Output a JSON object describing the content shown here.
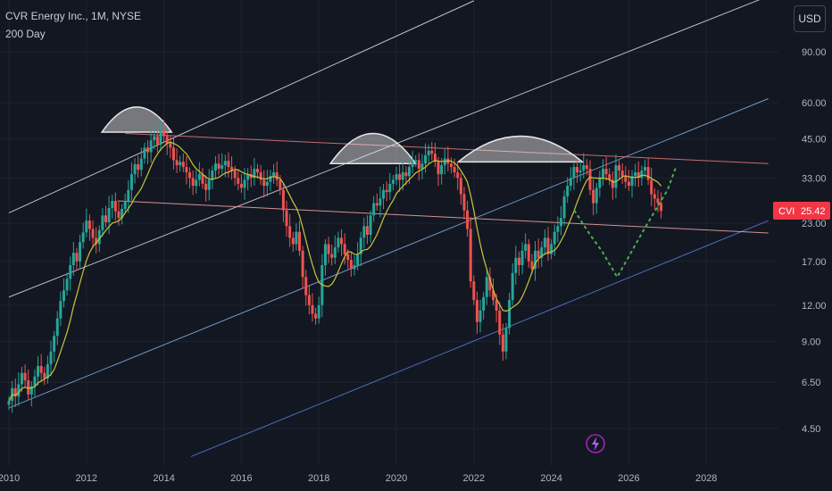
{
  "legend": {
    "symbol_line": "CVR Energy Inc., 1M, NYSE",
    "indicator": "200 Day"
  },
  "currency_button": "USD",
  "price_badge": {
    "ticker": "CVI",
    "price": "25.42"
  },
  "chart_data": {
    "type": "candlestick",
    "y_scale": "log",
    "y_ticks": [
      "90.00",
      "60.00",
      "45.00",
      "33.00",
      "23.00",
      "17.00",
      "12.00",
      "9.00",
      "6.50",
      "4.50"
    ],
    "y_tick_values": [
      90,
      60,
      45,
      33,
      23,
      17,
      12,
      9,
      6.5,
      4.5
    ],
    "x_ticks": [
      "2010",
      "2012",
      "2014",
      "2016",
      "2018",
      "2020",
      "2022",
      "2024",
      "2026",
      "2028"
    ],
    "x_tick_values": [
      2010,
      2012,
      2014,
      2016,
      2018,
      2020,
      2022,
      2024,
      2026,
      2028
    ],
    "ylim": [
      3.6,
      130
    ],
    "xlim": [
      2010,
      2029.6
    ],
    "colors": {
      "up": "#26a69a",
      "down": "#ef5350",
      "ma": "#c8c63b",
      "background": "#131722"
    },
    "monthly_closes": [
      {
        "start": 2010.0,
        "values": [
          5.6,
          6.2,
          5.8,
          6.4,
          7.0,
          6.6,
          5.9,
          6.3,
          6.8,
          7.4,
          7.0,
          6.7,
          7.5,
          8.3,
          9.4,
          10.8,
          12.4,
          13.5,
          14.8,
          16.5,
          18.2,
          17.0,
          19.8,
          21.4,
          23.5,
          22.0,
          20.5,
          19.5,
          21.8,
          24.5,
          23.2,
          26.0,
          27.5,
          25.3,
          24.0,
          25.8,
          27.5,
          30.0,
          34.0,
          36.8,
          35.2,
          38.5,
          42.0,
          40.5,
          44.5,
          46.0,
          43.0,
          48.0,
          46.0,
          43.5,
          42.0,
          38.0,
          36.5,
          37.5,
          36.0,
          34.5,
          33.0,
          31.0,
          32.5,
          34.0,
          31.5,
          30.0,
          32.5,
          35.0,
          37.0,
          35.5,
          36.5,
          37.8,
          36.0,
          35.0,
          33.0,
          31.5,
          30.5,
          32.5,
          34.0,
          33.0,
          35.5,
          34.5,
          32.5,
          31.0,
          32.0,
          33.5,
          34.5,
          32.5,
          30.0,
          25.5,
          22.5,
          20.5,
          19.5,
          21.5,
          18.5,
          15.0,
          13.0,
          12.0,
          11.2,
          10.8,
          12.0,
          16.5,
          19.5,
          18.0,
          17.5,
          19.0,
          20.5,
          19.5,
          18.0,
          17.2,
          16.0,
          16.5,
          18.0,
          20.5,
          22.5,
          21.0,
          24.5,
          27.0,
          26.5,
          28.0,
          30.0,
          29.5,
          31.5,
          32.5,
          34.0,
          32.5,
          34.5,
          33.5,
          36.0,
          37.5,
          38.0,
          35.5,
          37.0,
          39.5,
          41.0,
          40.0,
          37.5,
          34.0,
          36.5,
          38.5,
          37.0,
          36.0,
          34.5,
          33.0,
          29.0,
          25.5,
          22.0,
          14.5,
          12.5,
          10.5,
          11.5,
          12.8,
          15.0,
          13.5,
          12.5,
          11.5,
          9.5,
          8.3,
          10.0,
          12.5,
          15.5,
          17.5,
          16.5,
          18.5,
          19.5,
          17.0,
          16.0,
          18.5,
          17.5,
          19.0,
          20.5,
          18.0,
          19.5,
          21.5,
          22.5,
          24.0,
          28.5,
          31.0,
          33.0,
          36.0,
          34.5,
          35.0,
          36.5,
          35.5,
          30.0,
          27.0,
          30.5,
          33.0,
          35.5,
          34.0,
          32.5,
          30.5,
          36.5,
          35.0,
          33.5,
          32.0,
          31.0,
          33.5,
          34.5,
          33.0,
          35.0,
          36.0,
          32.5,
          29.0,
          28.0,
          27.0,
          25.4
        ]
      }
    ],
    "moving_average": {
      "name": "200 Day",
      "description": "smoothed monthly average"
    },
    "projection_points": [
      [
        2024.6,
        25.4
      ],
      [
        2025.0,
        21.0
      ],
      [
        2025.3,
        18.5
      ],
      [
        2025.7,
        15.0
      ],
      [
        2026.4,
        22.0
      ],
      [
        2027.0,
        30.0
      ],
      [
        2027.2,
        35.5
      ]
    ],
    "trend_lines": [
      {
        "color": "#d7d9df",
        "from": [
          2010.0,
          25.0
        ],
        "to": [
          2022.0,
          135.0
        ]
      },
      {
        "color": "#c9cfd9",
        "from": [
          2010.0,
          12.8
        ],
        "to": [
          2029.6,
          140.0
        ]
      },
      {
        "color": "#7aa5d8",
        "from": [
          2010.0,
          5.3
        ],
        "to": [
          2029.6,
          62.0
        ]
      },
      {
        "color": "#4f79c9",
        "from": [
          2014.7,
          3.6
        ],
        "to": [
          2029.6,
          23.5
        ]
      },
      {
        "color": "#d97777",
        "from": [
          2013.0,
          47.0
        ],
        "to": [
          2029.6,
          37.0
        ]
      },
      {
        "color": "#e9a0a0",
        "from": [
          2012.8,
          27.5
        ],
        "to": [
          2029.6,
          21.3
        ]
      }
    ],
    "arcs": [
      {
        "center_year": 2013.3,
        "peak": 58.0,
        "base": 47.5,
        "half_width": 0.9
      },
      {
        "center_year": 2019.4,
        "peak": 47.0,
        "base": 37.0,
        "half_width": 1.1
      },
      {
        "center_year": 2023.2,
        "peak": 46.0,
        "base": 37.5,
        "half_width": 1.6
      }
    ]
  }
}
